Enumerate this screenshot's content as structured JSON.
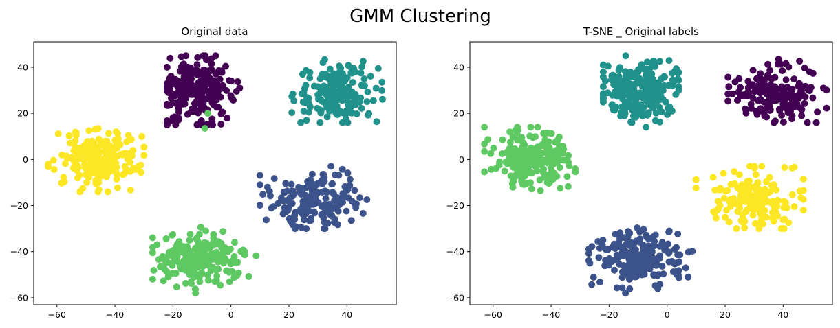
{
  "figure": {
    "title": "GMM Clustering"
  },
  "chart_data": [
    {
      "type": "scatter",
      "title": "Original data",
      "xlabel": "",
      "ylabel": "",
      "xlim": [
        -68,
        57
      ],
      "ylim": [
        -63,
        51
      ],
      "xticks": [
        -60,
        -40,
        -20,
        0,
        20,
        40
      ],
      "yticks": [
        -60,
        -40,
        -20,
        0,
        20,
        40
      ],
      "grid": false,
      "colormap": "viridis",
      "clusters": [
        {
          "color": "#440154",
          "center": [
            -12,
            30
          ],
          "spread": [
            6.5,
            6.5
          ],
          "count": 260,
          "range_x": [
            -22,
            3
          ],
          "range_y": [
            15,
            45
          ]
        },
        {
          "color": "#21918c",
          "center": [
            37,
            29
          ],
          "spread": [
            7,
            6.5
          ],
          "count": 170,
          "range_x": [
            21,
            55
          ],
          "range_y": [
            16,
            46
          ]
        },
        {
          "color": "#fde725",
          "center": [
            -46,
            0
          ],
          "spread": [
            7,
            6
          ],
          "count": 220,
          "range_x": [
            -63,
            -30
          ],
          "range_y": [
            -14,
            14
          ]
        },
        {
          "color": "#3b528b",
          "center": [
            30,
            -17
          ],
          "spread": [
            8,
            6.5
          ],
          "count": 170,
          "range_x": [
            10,
            47
          ],
          "range_y": [
            -30,
            -3
          ]
        },
        {
          "color": "#5ec962",
          "center": [
            -10,
            -43
          ],
          "spread": [
            7.5,
            5.5
          ],
          "count": 200,
          "range_x": [
            -27,
            9
          ],
          "range_y": [
            -58,
            -29
          ]
        }
      ],
      "extra_points": [
        {
          "x": -8,
          "y": 20,
          "color": "#5ec962"
        },
        {
          "x": -9,
          "y": 13.5,
          "color": "#5ec962"
        }
      ]
    },
    {
      "type": "scatter",
      "title": "T-SNE _ Original labels",
      "xlabel": "",
      "ylabel": "",
      "xlim": [
        -68,
        57
      ],
      "ylim": [
        -63,
        51
      ],
      "xticks": [
        -60,
        -40,
        -20,
        0,
        20,
        40
      ],
      "yticks": [
        -60,
        -40,
        -20,
        0,
        20,
        40
      ],
      "grid": false,
      "colormap": "viridis",
      "clusters": [
        {
          "color": "#21918c",
          "center": [
            -10,
            30
          ],
          "spread": [
            6.5,
            6.5
          ],
          "count": 260,
          "range_x": [
            -22,
            4
          ],
          "range_y": [
            14,
            45
          ]
        },
        {
          "color": "#440154",
          "center": [
            37,
            29
          ],
          "spread": [
            7,
            6.5
          ],
          "count": 170,
          "range_x": [
            21,
            55
          ],
          "range_y": [
            16,
            46
          ]
        },
        {
          "color": "#5ec962",
          "center": [
            -46,
            0
          ],
          "spread": [
            7,
            6
          ],
          "count": 220,
          "range_x": [
            -63,
            -30
          ],
          "range_y": [
            -14,
            14
          ]
        },
        {
          "color": "#fde725",
          "center": [
            30,
            -17
          ],
          "spread": [
            8,
            6.5
          ],
          "count": 170,
          "range_x": [
            10,
            47
          ],
          "range_y": [
            -30,
            -3
          ]
        },
        {
          "color": "#3b528b",
          "center": [
            -10,
            -43
          ],
          "spread": [
            7.5,
            5.5
          ],
          "count": 200,
          "range_x": [
            -27,
            9
          ],
          "range_y": [
            -58,
            -29
          ]
        }
      ],
      "extra_points": []
    }
  ]
}
